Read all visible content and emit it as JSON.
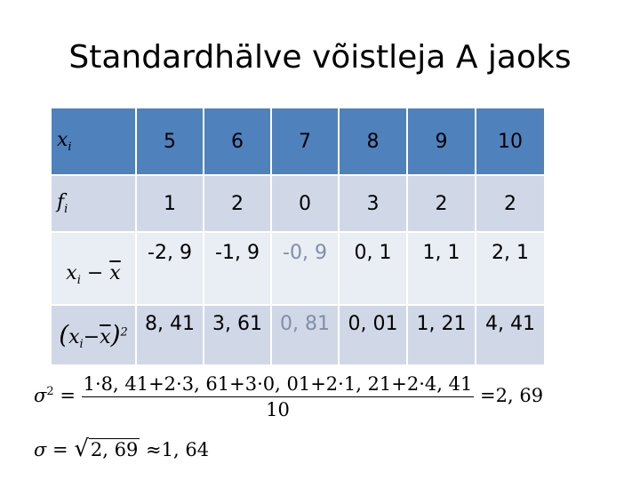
{
  "title": "Standardhälve võistleja A jaoks",
  "table": {
    "row_x": {
      "label": "x",
      "label_sub": "i",
      "values": [
        "5",
        "6",
        "7",
        "8",
        "9",
        "10"
      ]
    },
    "row_f": {
      "label": "f",
      "label_sub": "i",
      "values": [
        "1",
        "2",
        "0",
        "3",
        "2",
        "2"
      ]
    },
    "row_dev": {
      "label_var": "x",
      "label_sub": "i",
      "label_minus": "−",
      "label_mean": "x",
      "values": [
        "-2, 9",
        "-1, 9",
        "-0, 9",
        "0, 1",
        "1, 1",
        "2, 1"
      ]
    },
    "row_sq": {
      "label_open": "(",
      "label_var": "x",
      "label_sub": "i",
      "label_minus": "−",
      "label_mean": "x",
      "label_close": ")",
      "label_exp": "2",
      "values": [
        "8, 41",
        "3, 61",
        "0, 81",
        "0, 01",
        "1, 21",
        "4, 41"
      ]
    }
  },
  "formula_variance": {
    "lhs": "σ",
    "lhs_exp": "2",
    "eq": "=",
    "numerator": "1·8, 41+2·3, 61+3·0, 01+2·1, 21+2·4, 41",
    "denominator": "10",
    "result": "=2, 69"
  },
  "formula_sd": {
    "lhs": "σ",
    "eq": "=",
    "radicand": "2, 69",
    "result": "≈1, 64"
  },
  "colors": {
    "header_row": "#4f81bd",
    "band_dark": "#d0d8e8",
    "band_light": "#e9edf4",
    "muted_value": "#7f8fa6"
  }
}
